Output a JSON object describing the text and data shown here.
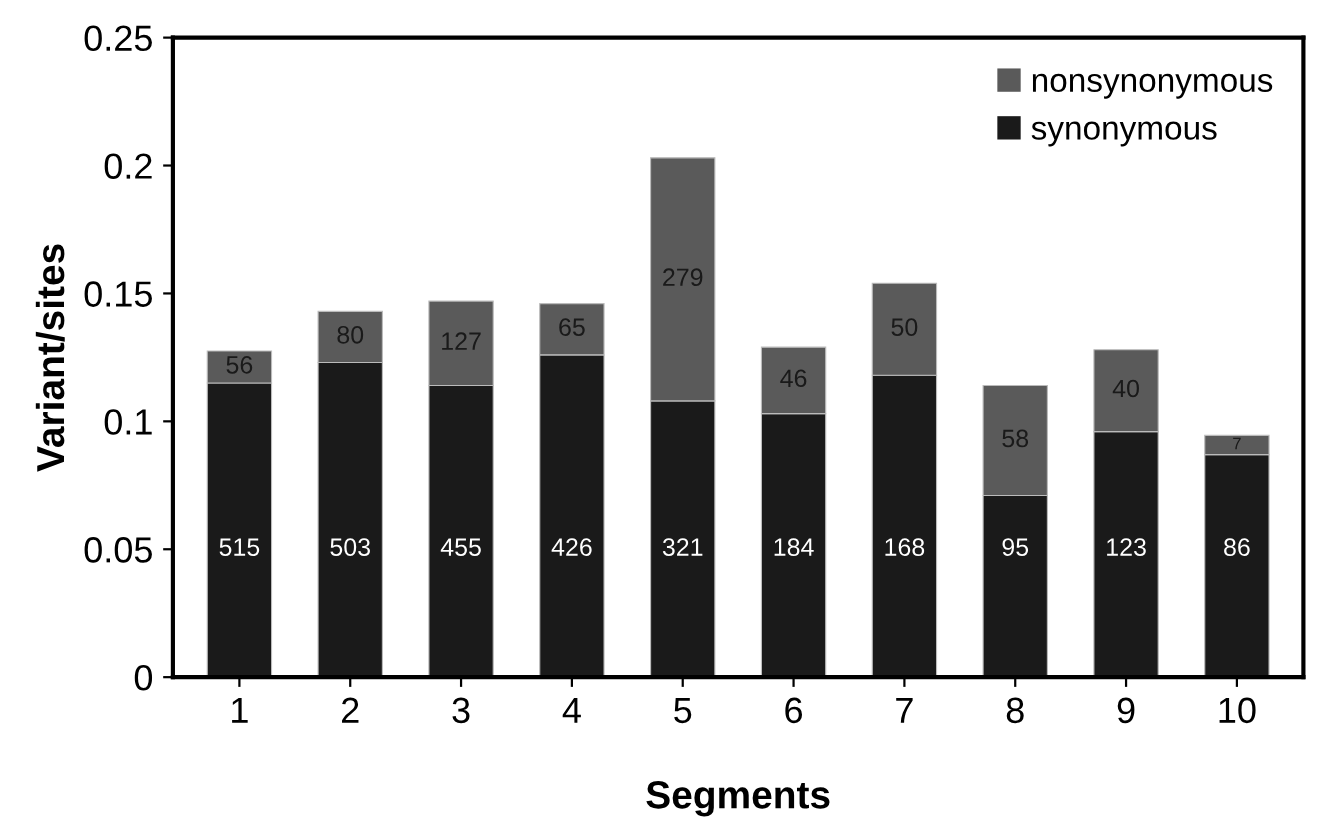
{
  "chart_data": {
    "type": "bar",
    "stacked": true,
    "xlabel": "Segments",
    "ylabel": "Variant/sites",
    "categories": [
      "1",
      "2",
      "3",
      "4",
      "5",
      "6",
      "7",
      "8",
      "9",
      "10"
    ],
    "series": [
      {
        "name": "synonymous",
        "color": "#1a1a1a",
        "values": [
          0.115,
          0.123,
          0.114,
          0.126,
          0.108,
          0.103,
          0.118,
          0.071,
          0.096,
          0.087
        ]
      },
      {
        "name": "nonsynonymous",
        "color": "#5a5a5a",
        "values": [
          0.0125,
          0.02,
          0.033,
          0.02,
          0.095,
          0.026,
          0.036,
          0.043,
          0.032,
          0.0075
        ]
      }
    ],
    "annotations": [
      "515",
      "503",
      "455",
      "426",
      "321",
      "184",
      "168",
      "95",
      "123",
      "86",
      "56",
      "80",
      "127",
      "65",
      "279",
      "46",
      "50",
      "58",
      "40",
      "7"
    ],
    "ylim": [
      0,
      0.25
    ],
    "yticks": [
      0,
      0.05,
      0.1,
      0.15,
      0.2,
      0.25
    ],
    "grid": false,
    "legend": "top right"
  }
}
